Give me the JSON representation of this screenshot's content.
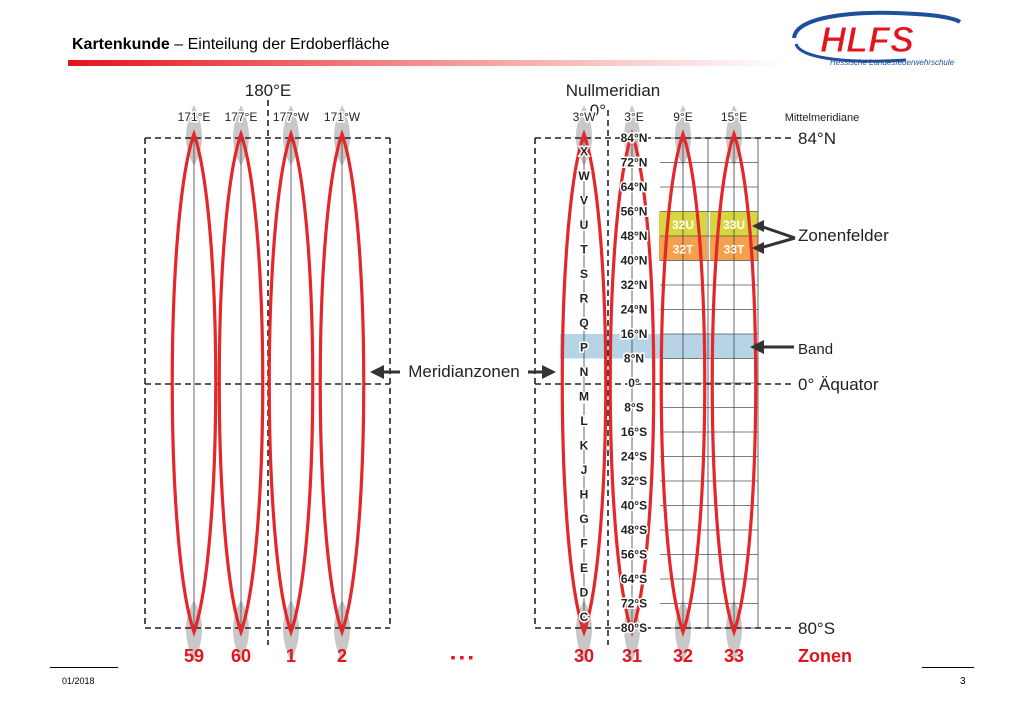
{
  "header": {
    "title_bold": "Kartenkunde",
    "title_rest": " – Einteilung der Erdoberfläche"
  },
  "logo": {
    "text": "HLFS",
    "subtitle": "Hessische Landesfeuerwehrschule"
  },
  "footer": {
    "date": "01/2018",
    "page": "3"
  },
  "colors": {
    "zone_outline": "#e3272b",
    "pole_cap": "#c8c8c8",
    "band_highlight": "#b7d4e6",
    "field_u": "#d7d640",
    "field_t": "#f5a04c",
    "accent_red": "#e3141c",
    "logo_blue": "#1d4f9c"
  },
  "diagram": {
    "label_180": "180°E",
    "label_null": "Nullmeridian",
    "label_zero": "0°",
    "label_mittel": "Mittelmeridiane",
    "label_84n": "84°N",
    "label_80s": "80°S",
    "label_aequator": "0° Äquator",
    "label_zonenfelder": "Zonenfelder",
    "label_band": "Band",
    "label_meridianzonen": "Meridianzonen",
    "label_zonen": "Zonen",
    "ellipsis": "▪ ▪ ▪",
    "left_meridians": [
      "171°E",
      "177°E",
      "177°W",
      "171°W"
    ],
    "right_meridians": [
      "3°W",
      "3°E",
      "9°E",
      "15°E"
    ],
    "zones_left": [
      "59",
      "60",
      "1",
      "2"
    ],
    "zones_right": [
      "30",
      "31",
      "32",
      "33"
    ],
    "band_letters": [
      "X",
      "W",
      "V",
      "U",
      "T",
      "S",
      "R",
      "Q",
      "P",
      "N",
      "M",
      "L",
      "K",
      "J",
      "H",
      "G",
      "F",
      "E",
      "D",
      "C"
    ],
    "latitudes": [
      "84°N",
      "72°N",
      "64°N",
      "56°N",
      "48°N",
      "40°N",
      "32°N",
      "24°N",
      "16°N",
      "8°N",
      "0°",
      "8°S",
      "16°S",
      "24°S",
      "32°S",
      "40°S",
      "48°S",
      "56°S",
      "64°S",
      "72°S",
      "80°S"
    ],
    "fields": [
      "32U",
      "33U",
      "32T",
      "33T"
    ]
  }
}
